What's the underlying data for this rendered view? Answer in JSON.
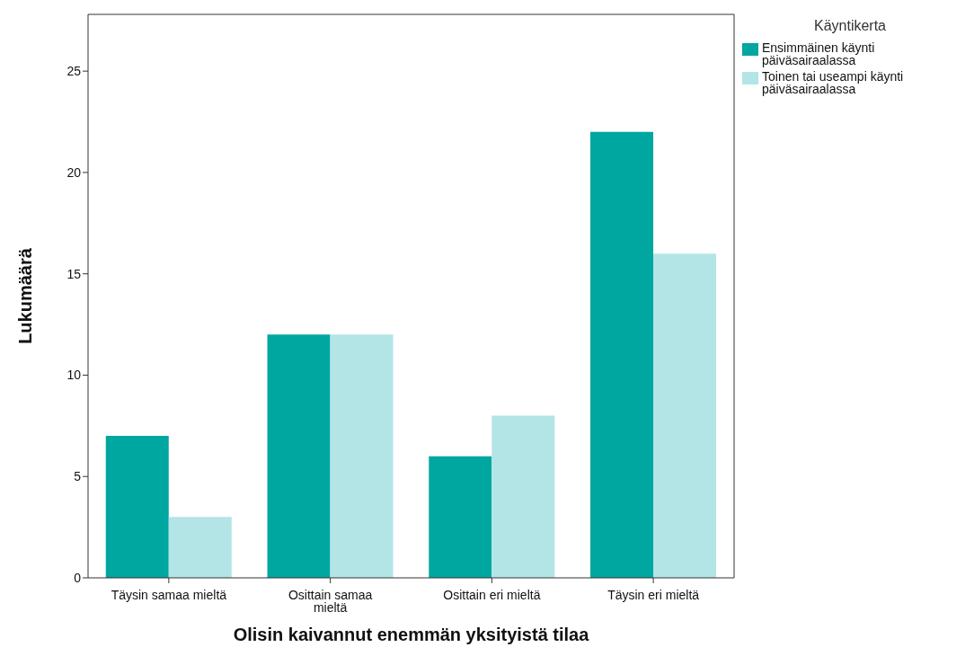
{
  "chart_data": {
    "type": "bar",
    "xlabel": "Olisin kaivannut enemmän yksityistä tilaa",
    "ylabel": "Lukumäärä",
    "legend_title": "Käyntikerta",
    "categories": [
      "Täysin samaa mieltä",
      "Osittain samaa mieltä",
      "Osittain eri mieltä",
      "Täysin eri mieltä"
    ],
    "series": [
      {
        "name": "Ensimmäinen käynti päiväsairaalassa",
        "color": "#00a6a0",
        "values": [
          7,
          12,
          6,
          22
        ]
      },
      {
        "name": "Toinen tai useampi käynti päiväsairaalassa",
        "color": "#b3e5e6",
        "values": [
          3,
          12,
          8,
          16
        ]
      }
    ],
    "ylim": [
      0,
      27.8
    ],
    "yticks": [
      0,
      5,
      10,
      15,
      20,
      25
    ],
    "grid": false,
    "legend": "top right"
  }
}
